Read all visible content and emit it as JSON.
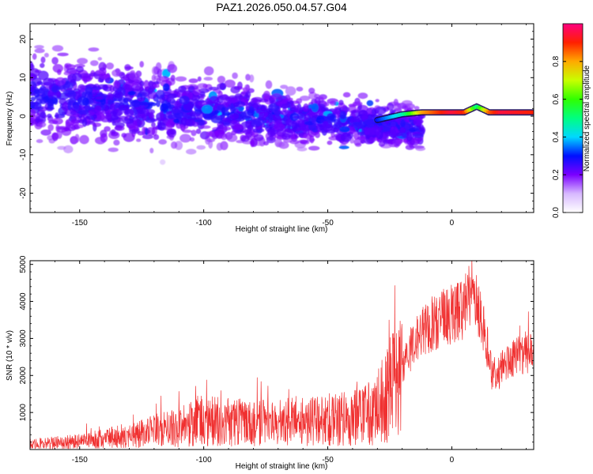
{
  "title": "PAZ1.2026.050.04.57.G04",
  "chart_data": [
    {
      "type": "heatmap",
      "name": "spectrogram",
      "xlabel": "Height of straight line (km)",
      "ylabel": "Frequency (Hz)",
      "xlim": [
        -170,
        33
      ],
      "ylim": [
        -25,
        24
      ],
      "xticks": [
        -150,
        -100,
        -50,
        0
      ],
      "yticks": [
        -20,
        -10,
        0,
        10,
        20
      ],
      "colorbar": {
        "label": "Normalized spectral amplitude",
        "range": [
          0,
          1
        ],
        "ticks": [
          0.0,
          0.2,
          0.4,
          0.6,
          0.8
        ]
      },
      "ridge": {
        "description": "narrow high-amplitude band near 1 Hz",
        "x": [
          -30,
          -20,
          -12,
          0,
          5,
          10,
          15,
          20,
          33
        ],
        "y": [
          -1,
          0.5,
          1,
          1,
          1,
          2.5,
          1,
          1,
          1
        ],
        "amplitude": [
          0.3,
          0.45,
          0.8,
          0.95,
          0.9,
          0.5,
          0.85,
          0.95,
          0.9
        ]
      }
    },
    {
      "type": "line",
      "name": "snr",
      "xlabel": "Height of straight line (km)",
      "ylabel": "SNR (10 * v/v)",
      "xlim": [
        -170,
        33
      ],
      "ylim": [
        0,
        5100
      ],
      "xticks": [
        -150,
        -100,
        -50,
        0
      ],
      "yticks": [
        1000,
        2000,
        3000,
        4000,
        5000
      ],
      "color": "#f03030",
      "trend": {
        "x": [
          -170,
          -150,
          -130,
          -110,
          -100,
          -80,
          -60,
          -40,
          -30,
          -25,
          -20,
          -15,
          -10,
          -5,
          0,
          5,
          8,
          10,
          12,
          14,
          16,
          18,
          20,
          25,
          30,
          33
        ],
        "y": [
          150,
          220,
          380,
          600,
          780,
          700,
          750,
          850,
          1100,
          1600,
          2300,
          2900,
          3300,
          3500,
          3650,
          3800,
          4300,
          4000,
          3400,
          2900,
          2100,
          1800,
          2250,
          2450,
          2600,
          2600
        ]
      }
    }
  ]
}
